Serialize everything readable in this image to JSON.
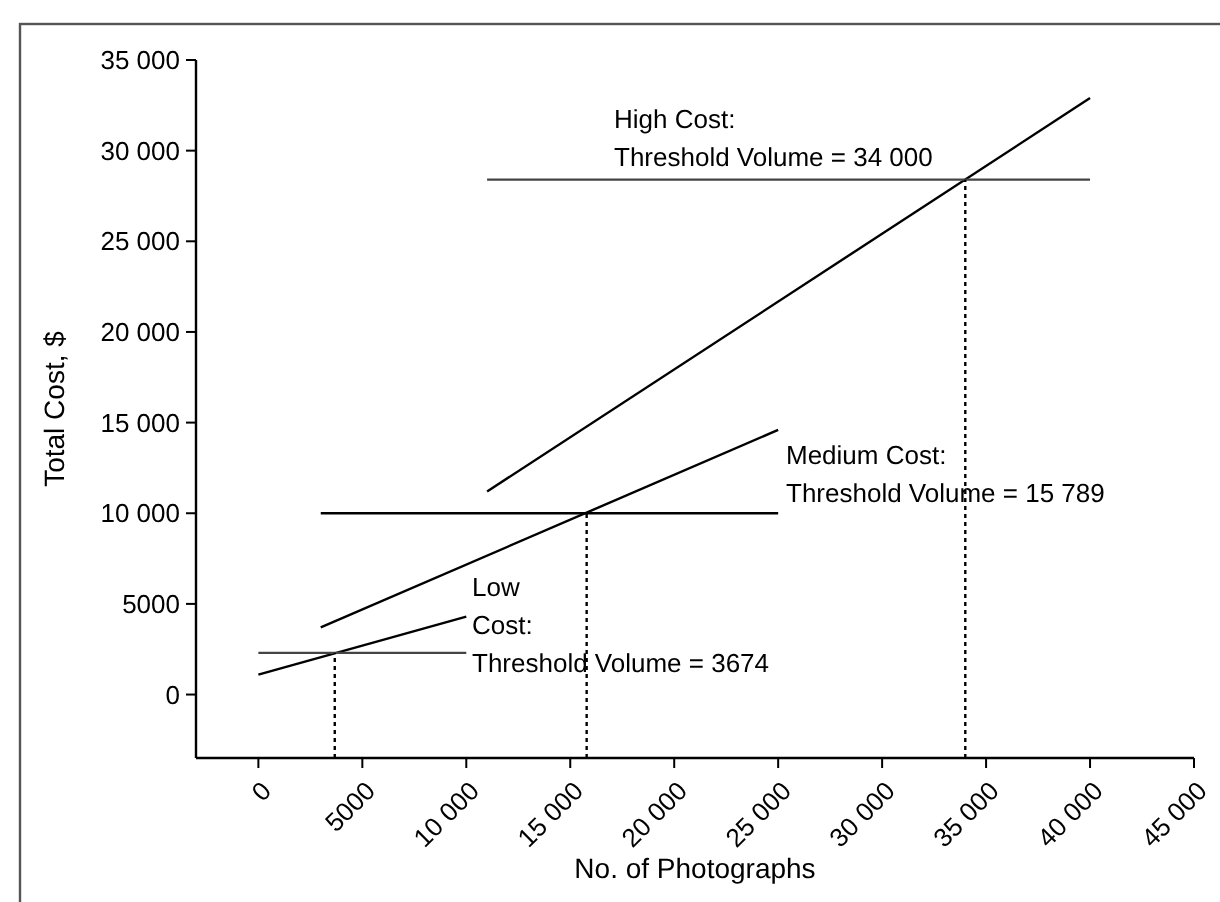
{
  "chart_data": {
    "type": "line",
    "xlabel": "No. of Photographs",
    "ylabel": "Total Cost, $",
    "xlim": [
      -3000,
      45000
    ],
    "ylim": [
      -3500,
      35000
    ],
    "xticks": [
      0,
      5000,
      {
        "value": 10000,
        "label": "10 000"
      },
      {
        "value": 15000,
        "label": "15 000"
      },
      {
        "value": 20000,
        "label": "20 000"
      },
      {
        "value": 25000,
        "label": "25 000"
      },
      {
        "value": 30000,
        "label": "30 000"
      },
      {
        "value": 35000,
        "label": "35 000"
      },
      {
        "value": 40000,
        "label": "40 000"
      },
      {
        "value": 45000,
        "label": "45 000"
      }
    ],
    "yticks": [
      0,
      5000,
      {
        "value": 10000,
        "label": "10 000"
      },
      {
        "value": 15000,
        "label": "15 000"
      },
      {
        "value": 20000,
        "label": "20 000"
      },
      {
        "value": 25000,
        "label": "25 000"
      },
      {
        "value": 30000,
        "label": "30 000"
      },
      {
        "value": 35000,
        "label": "35 000"
      }
    ],
    "grid": false,
    "marker": "none",
    "series": [
      {
        "color": "#000000",
        "x": [
          0,
          10000
        ],
        "values": [
          1100,
          4300
        ]
      },
      {
        "color": "#444444",
        "x": [
          0,
          10000
        ],
        "values": [
          2300,
          2300
        ]
      },
      {
        "color": "#000000",
        "x": [
          3000,
          25000
        ],
        "values": [
          3700,
          14600
        ]
      },
      {
        "color": "#000000",
        "x": [
          3000,
          25000
        ],
        "values": [
          10000,
          10000
        ]
      },
      {
        "color": "#000000",
        "x": [
          11000,
          40000
        ],
        "values": [
          11200,
          32900
        ]
      },
      {
        "color": "#444444",
        "x": [
          11000,
          40000
        ],
        "values": [
          28400,
          28400
        ]
      },
      {
        "color": "#000000",
        "line_style": "dotted",
        "x": [
          3674,
          3674
        ],
        "values": [
          -3500,
          2300
        ]
      },
      {
        "color": "#000000",
        "line_style": "dotted",
        "x": [
          15789,
          15789
        ],
        "values": [
          -3500,
          10000
        ]
      },
      {
        "color": "#000000",
        "line_style": "dotted",
        "x": [
          34000,
          34000
        ],
        "values": [
          -3500,
          28400
        ]
      }
    ],
    "annotations": [
      "High Cost:\nThreshold Volume = 34 000",
      "Medium Cost:\nThreshold Volume = 15 789",
      "Low\nCost:\nThreshold Volume = 3674"
    ]
  }
}
